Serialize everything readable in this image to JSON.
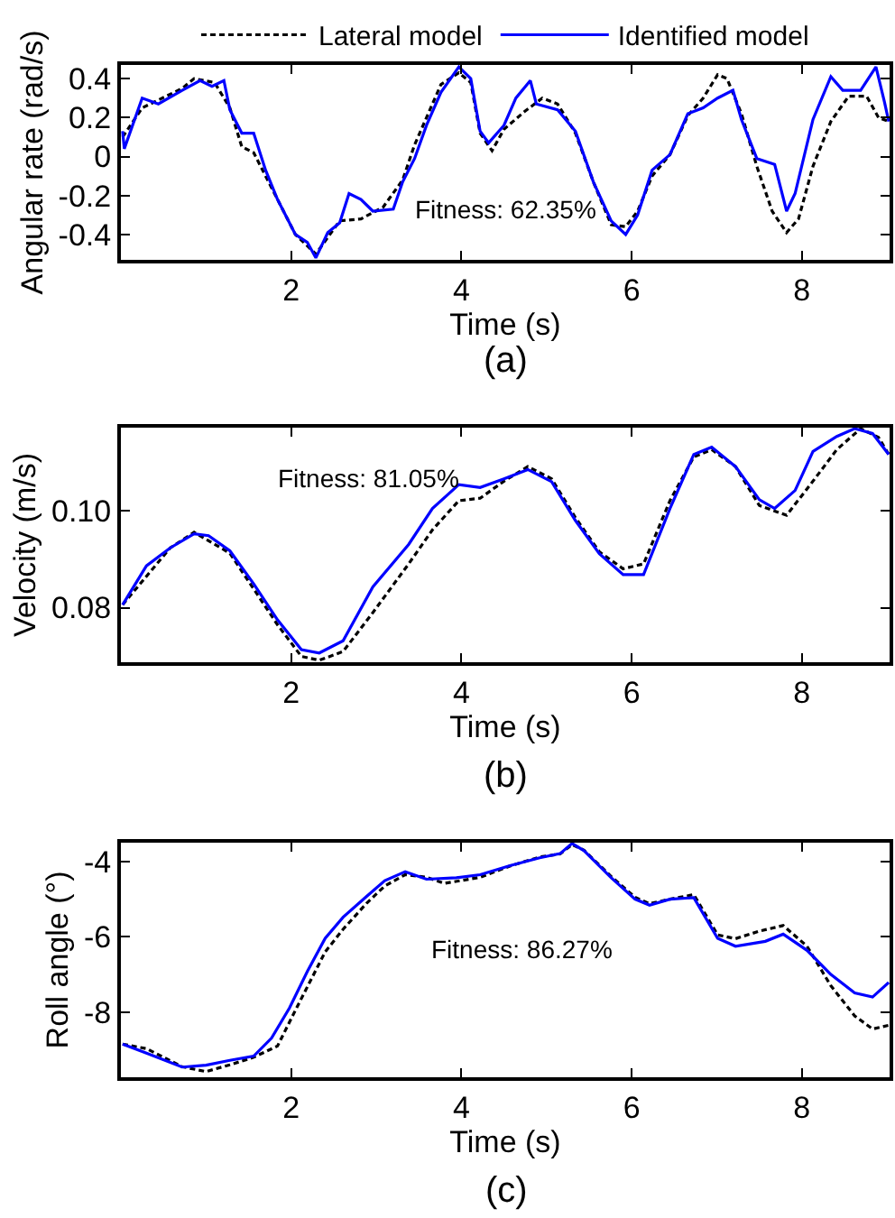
{
  "chart_data": [
    {
      "type": "line",
      "xlabel": "Time (s)",
      "ylabel": "Angular rate (rad/s)",
      "xlim": [
        0,
        9.03
      ],
      "xticks": [
        2,
        4,
        6,
        8
      ],
      "ylim": [
        -0.53,
        0.47
      ],
      "yticks": [
        -0.4,
        -0.2,
        0,
        0.2,
        0.4
      ],
      "grid": false,
      "legend": "top",
      "annotations": [
        "Fitness: 62.35%",
        "(a)"
      ],
      "series": [
        {
          "name": "Lateral model",
          "color": "#000000",
          "line_style": "dashed",
          "x": [
            0.02,
            0.25,
            0.72,
            0.86,
            1.1,
            1.28,
            1.42,
            1.56,
            1.84,
            2.05,
            2.29,
            2.57,
            2.82,
            3.08,
            3.31,
            3.45,
            3.59,
            3.76,
            3.97,
            4.11,
            4.22,
            4.36,
            4.5,
            4.74,
            4.95,
            5.13,
            5.34,
            5.55,
            5.76,
            5.93,
            6.07,
            6.24,
            6.45,
            6.66,
            6.84,
            7.01,
            7.12,
            7.29,
            7.47,
            7.65,
            7.82,
            7.96,
            8.13,
            8.34,
            8.55,
            8.76,
            8.9,
            9.02
          ],
          "values": [
            0.1,
            0.25,
            0.35,
            0.4,
            0.38,
            0.25,
            0.05,
            0.02,
            -0.22,
            -0.4,
            -0.5,
            -0.33,
            -0.32,
            -0.26,
            -0.12,
            0.06,
            0.2,
            0.37,
            0.43,
            0.38,
            0.12,
            0.03,
            0.14,
            0.23,
            0.3,
            0.27,
            0.12,
            -0.13,
            -0.35,
            -0.36,
            -0.28,
            -0.1,
            0.01,
            0.21,
            0.3,
            0.42,
            0.4,
            0.22,
            -0.05,
            -0.28,
            -0.39,
            -0.32,
            -0.05,
            0.18,
            0.31,
            0.31,
            0.2,
            0.18
          ]
        },
        {
          "name": "Identified model",
          "color": "#0000ff",
          "line_style": "solid",
          "x": [
            0.02,
            0.04,
            0.25,
            0.44,
            0.72,
            0.93,
            1.07,
            1.21,
            1.28,
            1.42,
            1.56,
            1.7,
            1.84,
            2.05,
            2.19,
            2.29,
            2.43,
            2.57,
            2.68,
            2.82,
            2.96,
            3.2,
            3.31,
            3.45,
            3.59,
            3.76,
            3.97,
            4.11,
            4.22,
            4.32,
            4.5,
            4.64,
            4.81,
            4.88,
            5.13,
            5.34,
            5.55,
            5.76,
            5.93,
            6.07,
            6.24,
            6.45,
            6.66,
            6.84,
            7.01,
            7.19,
            7.29,
            7.47,
            7.68,
            7.82,
            7.92,
            8.13,
            8.34,
            8.48,
            8.69,
            8.87,
            8.97,
            9.02
          ],
          "values": [
            0.13,
            0.04,
            0.3,
            0.27,
            0.34,
            0.39,
            0.36,
            0.39,
            0.24,
            0.12,
            0.12,
            -0.07,
            -0.22,
            -0.4,
            -0.44,
            -0.52,
            -0.39,
            -0.34,
            -0.19,
            -0.22,
            -0.28,
            -0.27,
            -0.13,
            -0.01,
            0.16,
            0.33,
            0.46,
            0.4,
            0.13,
            0.07,
            0.16,
            0.3,
            0.39,
            0.27,
            0.24,
            0.13,
            -0.13,
            -0.33,
            -0.4,
            -0.3,
            -0.07,
            0.01,
            0.22,
            0.25,
            0.3,
            0.34,
            0.19,
            -0.01,
            -0.04,
            -0.28,
            -0.19,
            0.19,
            0.41,
            0.34,
            0.34,
            0.46,
            0.28,
            0.18
          ]
        }
      ]
    },
    {
      "type": "line",
      "xlabel": "Time (s)",
      "ylabel": "Velocity (m/s)",
      "xlim": [
        0,
        9.03
      ],
      "xticks": [
        2,
        4,
        6,
        8
      ],
      "ylim": [
        0.0688,
        0.117
      ],
      "yticks": [
        {
          "value": 0.08,
          "label": "0.08"
        },
        {
          "value": 0.1,
          "label": "0.10"
        }
      ],
      "grid": false,
      "annotations": [
        "Fitness: 81.05%",
        "(b)"
      ],
      "series": [
        {
          "color": "#000000",
          "line_style": "dashed",
          "x": [
            0.02,
            0.58,
            0.86,
            1.28,
            1.84,
            2.12,
            2.33,
            2.61,
            2.96,
            3.38,
            3.66,
            3.97,
            4.22,
            4.5,
            4.78,
            5.06,
            5.34,
            5.62,
            5.9,
            6.14,
            6.45,
            6.73,
            6.94,
            7.22,
            7.5,
            7.82,
            8.13,
            8.41,
            8.69,
            8.9,
            9.02
          ],
          "values": [
            0.0806,
            0.0923,
            0.0955,
            0.0912,
            0.0765,
            0.07,
            0.0692,
            0.071,
            0.079,
            0.089,
            0.096,
            0.102,
            0.1025,
            0.106,
            0.109,
            0.1065,
            0.0985,
            0.0915,
            0.088,
            0.089,
            0.102,
            0.111,
            0.1125,
            0.109,
            0.101,
            0.099,
            0.106,
            0.1125,
            0.1168,
            0.115,
            0.1115
          ]
        },
        {
          "color": "#0000ff",
          "line_style": "solid",
          "x": [
            0.02,
            0.3,
            0.58,
            0.86,
            1.03,
            1.28,
            1.56,
            1.84,
            2.12,
            2.33,
            2.61,
            2.96,
            3.38,
            3.66,
            3.97,
            4.22,
            4.5,
            4.78,
            5.06,
            5.34,
            5.62,
            5.9,
            6.14,
            6.45,
            6.73,
            6.94,
            7.22,
            7.5,
            7.68,
            7.92,
            8.13,
            8.41,
            8.62,
            8.83,
            9.02
          ],
          "values": [
            0.0806,
            0.0886,
            0.0923,
            0.0952,
            0.0948,
            0.0917,
            0.0849,
            0.0775,
            0.0714,
            0.0707,
            0.0732,
            0.0843,
            0.093,
            0.1004,
            0.1053,
            0.1047,
            0.1065,
            0.1084,
            0.1059,
            0.0979,
            0.0911,
            0.0868,
            0.0868,
            0.1004,
            0.1115,
            0.113,
            0.109,
            0.1022,
            0.1004,
            0.1041,
            0.1121,
            0.1152,
            0.1168,
            0.1158,
            0.1115
          ]
        }
      ]
    },
    {
      "type": "line",
      "xlabel": "Time (s)",
      "ylabel": "Roll angle (°)",
      "xlim": [
        0,
        9.03
      ],
      "xticks": [
        2,
        4,
        6,
        8
      ],
      "ylim": [
        -9.73,
        -3.5
      ],
      "yticks": [
        -8,
        -6,
        -4
      ],
      "grid": false,
      "annotations": [
        "Fitness: 86.27%",
        "(c)"
      ],
      "series": [
        {
          "color": "#000000",
          "line_style": "dashed",
          "x": [
            0.02,
            0.3,
            0.72,
            1.0,
            1.28,
            1.56,
            1.84,
            2.05,
            2.4,
            2.61,
            2.89,
            3.1,
            3.34,
            3.59,
            3.8,
            4.22,
            4.57,
            4.92,
            5.16,
            5.3,
            5.44,
            5.76,
            6.04,
            6.21,
            6.45,
            6.73,
            7.01,
            7.22,
            7.5,
            7.78,
            8.06,
            8.34,
            8.62,
            8.83,
            9.02
          ],
          "values": [
            -8.85,
            -8.97,
            -9.45,
            -9.58,
            -9.4,
            -9.2,
            -8.9,
            -7.95,
            -6.4,
            -5.8,
            -5.1,
            -4.65,
            -4.35,
            -4.42,
            -4.58,
            -4.42,
            -4.12,
            -3.88,
            -3.8,
            -3.55,
            -3.7,
            -4.4,
            -4.95,
            -5.12,
            -5.0,
            -4.88,
            -5.95,
            -6.05,
            -5.85,
            -5.7,
            -6.25,
            -7.3,
            -8.1,
            -8.45,
            -8.35
          ]
        },
        {
          "color": "#0000ff",
          "line_style": "solid",
          "x": [
            0.02,
            0.3,
            0.72,
            1.0,
            1.28,
            1.56,
            1.77,
            1.98,
            2.19,
            2.4,
            2.61,
            2.89,
            3.1,
            3.34,
            3.59,
            3.94,
            4.22,
            4.57,
            4.92,
            5.16,
            5.3,
            5.44,
            5.76,
            6.04,
            6.21,
            6.45,
            6.73,
            7.01,
            7.22,
            7.57,
            7.78,
            8.06,
            8.34,
            8.62,
            8.83,
            9.02
          ],
          "values": [
            -8.85,
            -9.09,
            -9.46,
            -9.41,
            -9.28,
            -9.17,
            -8.69,
            -7.89,
            -6.92,
            -6.04,
            -5.48,
            -4.92,
            -4.51,
            -4.27,
            -4.47,
            -4.43,
            -4.35,
            -4.11,
            -3.9,
            -3.79,
            -3.52,
            -3.71,
            -4.43,
            -5.0,
            -5.16,
            -5.0,
            -4.96,
            -6.04,
            -6.25,
            -6.12,
            -5.93,
            -6.36,
            -7.0,
            -7.49,
            -7.6,
            -7.21
          ]
        }
      ]
    }
  ]
}
